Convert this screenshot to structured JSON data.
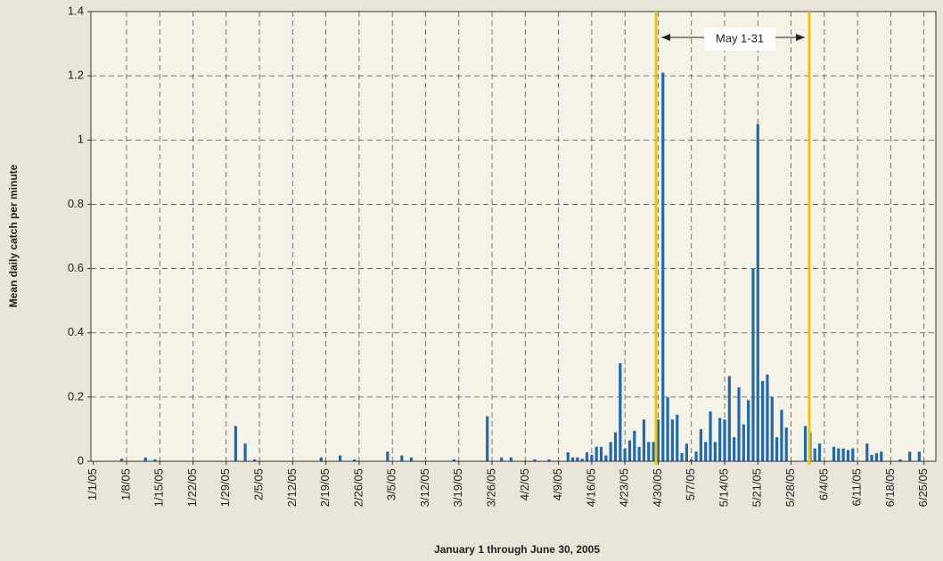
{
  "chart_data": {
    "type": "bar",
    "x_label": "January 1 through June 30, 2005",
    "y_label": "Mean daily catch per minute",
    "annotation": "May 1-31",
    "color": "#1f6aae",
    "grid": true,
    "ylim": [
      0,
      1.4
    ],
    "yticks": [
      0,
      0.2,
      0.4,
      0.6,
      0.8,
      1,
      1.2,
      1.4
    ],
    "categories": [
      "1/1/05",
      null,
      null,
      null,
      null,
      null,
      null,
      "1/8/05",
      null,
      null,
      null,
      null,
      null,
      null,
      "1/15/05",
      null,
      null,
      null,
      null,
      null,
      null,
      "1/22/05",
      null,
      null,
      null,
      null,
      null,
      null,
      "1/29/05",
      null,
      null,
      null,
      null,
      null,
      null,
      "2/5/05",
      null,
      null,
      null,
      null,
      null,
      null,
      "2/12/05",
      null,
      null,
      null,
      null,
      null,
      null,
      "2/19/05",
      null,
      null,
      null,
      null,
      null,
      null,
      "2/26/05",
      null,
      null,
      null,
      null,
      null,
      null,
      "3/5/05",
      null,
      null,
      null,
      null,
      null,
      null,
      "3/12/05",
      null,
      null,
      null,
      null,
      null,
      null,
      "3/19/05",
      null,
      null,
      null,
      null,
      null,
      null,
      "3/26/05",
      null,
      null,
      null,
      null,
      null,
      null,
      "4/2/05",
      null,
      null,
      null,
      null,
      null,
      null,
      "4/9/05",
      null,
      null,
      null,
      null,
      null,
      null,
      "4/16/05",
      null,
      null,
      null,
      null,
      null,
      null,
      "4/23/05",
      null,
      null,
      null,
      null,
      null,
      null,
      "4/30/05",
      null,
      null,
      null,
      null,
      null,
      null,
      "5/7/05",
      null,
      null,
      null,
      null,
      null,
      null,
      "5/14/05",
      null,
      null,
      null,
      null,
      null,
      null,
      "5/21/05",
      null,
      null,
      null,
      null,
      null,
      null,
      "5/28/05",
      null,
      null,
      null,
      null,
      null,
      null,
      "6/4/05",
      null,
      null,
      null,
      null,
      null,
      null,
      "6/11/05",
      null,
      null,
      null,
      null,
      null,
      null,
      "6/18/05",
      null,
      null,
      null,
      null,
      null,
      null,
      "6/25/05",
      null,
      null
    ],
    "values": [
      0,
      0,
      0,
      0,
      0,
      0,
      0.008,
      0,
      0,
      0,
      0,
      0.012,
      0,
      0.006,
      0,
      0,
      0,
      0,
      0,
      0,
      0,
      0,
      0,
      0,
      0,
      0,
      0,
      0,
      0,
      0,
      0.11,
      0,
      0.055,
      0,
      0.006,
      0,
      0,
      0,
      0,
      0,
      0,
      0,
      0,
      0,
      0,
      0,
      0,
      0,
      0.012,
      0,
      0,
      0,
      0.018,
      0,
      0,
      0.006,
      0,
      0,
      0,
      0,
      0,
      0,
      0.03,
      0,
      0,
      0.018,
      0,
      0.012,
      0,
      0,
      0,
      0,
      0,
      0,
      0,
      0,
      0.006,
      0,
      0,
      0,
      0,
      0,
      0,
      0.14,
      0,
      0,
      0.012,
      0,
      0.012,
      0,
      0,
      0,
      0,
      0.006,
      0,
      0,
      0.006,
      0,
      0,
      0,
      0.028,
      0.012,
      0.012,
      0.008,
      0.028,
      0.02,
      0.045,
      0.045,
      0.018,
      0.06,
      0.09,
      0.305,
      0.04,
      0.065,
      0.095,
      0.045,
      0.13,
      0.06,
      0.06,
      0.13,
      1.21,
      0.2,
      0.13,
      0.145,
      0.025,
      0.055,
      0.006,
      0.03,
      0.1,
      0.06,
      0.155,
      0.06,
      0.135,
      0.13,
      0.265,
      0.075,
      0.23,
      0.115,
      0.19,
      0.6,
      1.05,
      0.25,
      0.27,
      0.2,
      0.075,
      0.16,
      0.105,
      0,
      0,
      0,
      0.11,
      0.09,
      0.04,
      0.055,
      0,
      0,
      0.045,
      0.04,
      0.04,
      0.035,
      0.04,
      0,
      0,
      0.055,
      0.02,
      0.025,
      0.03,
      0,
      0,
      0,
      0.006,
      0,
      0.03,
      0,
      0.03,
      0,
      0,
      0
    ]
  }
}
